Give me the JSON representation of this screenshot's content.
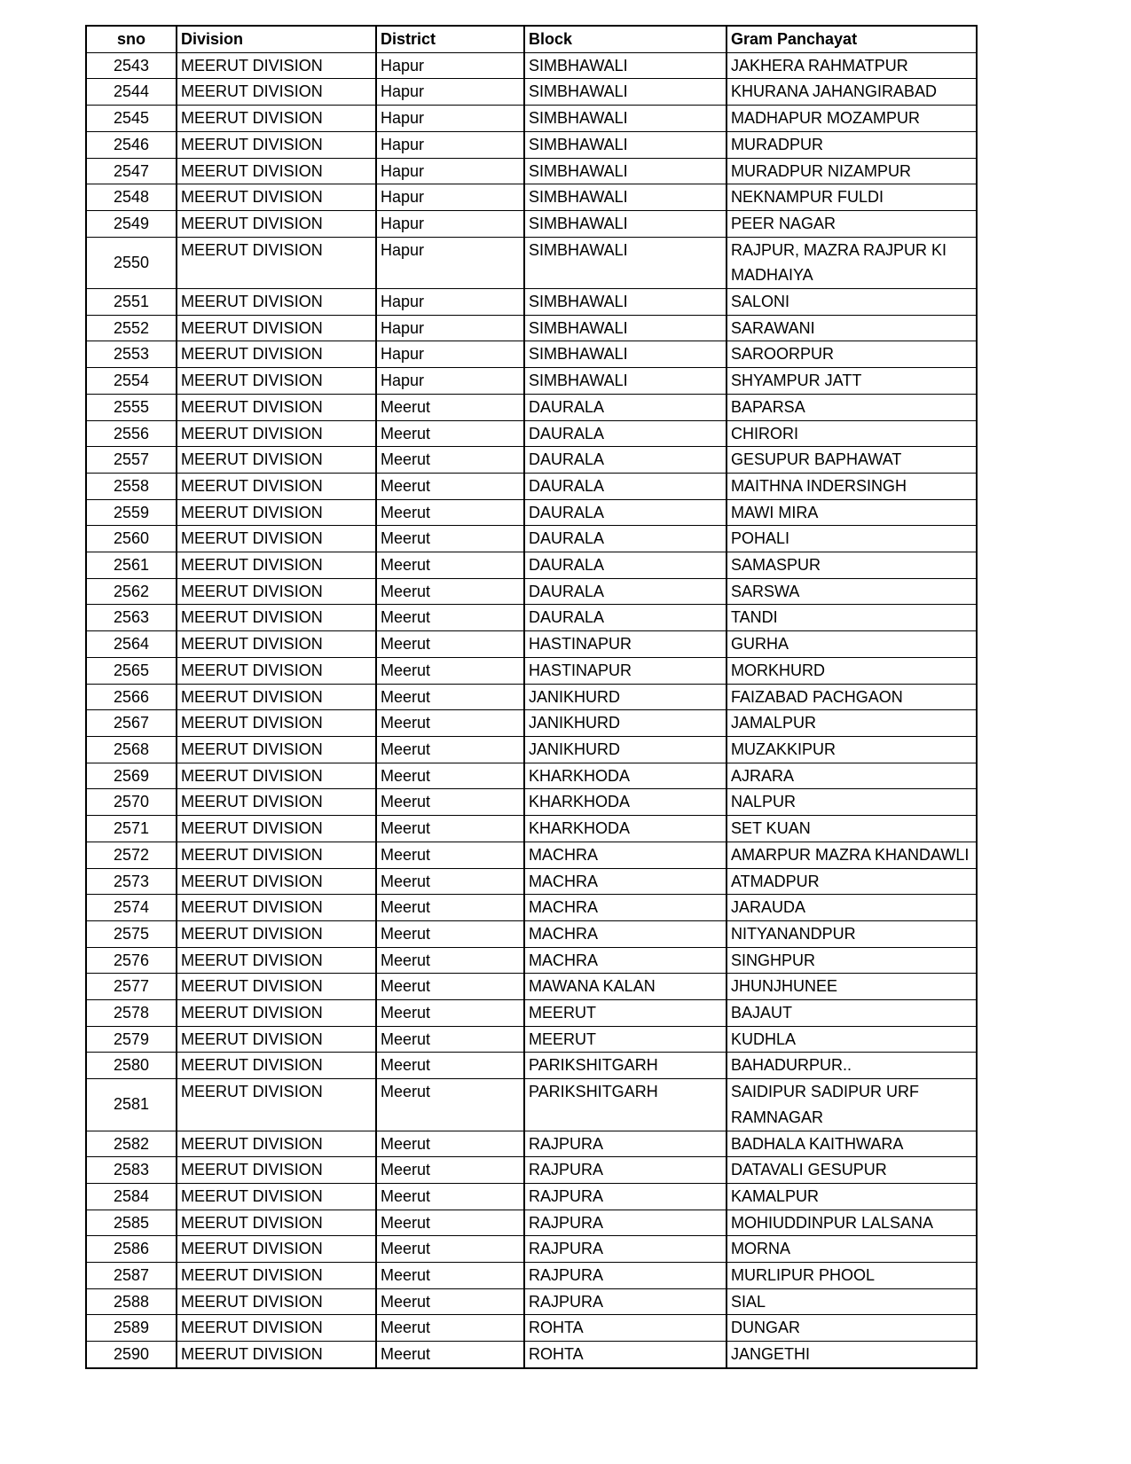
{
  "headers": [
    "sno",
    "Division",
    "District",
    "Block",
    "Gram Panchayat"
  ],
  "rows": [
    [
      "2543",
      "MEERUT DIVISION",
      "Hapur",
      "SIMBHAWALI",
      "JAKHERA RAHMATPUR"
    ],
    [
      "2544",
      "MEERUT DIVISION",
      "Hapur",
      "SIMBHAWALI",
      "KHURANA JAHANGIRABAD"
    ],
    [
      "2545",
      "MEERUT DIVISION",
      "Hapur",
      "SIMBHAWALI",
      "MADHAPUR MOZAMPUR"
    ],
    [
      "2546",
      "MEERUT DIVISION",
      "Hapur",
      "SIMBHAWALI",
      "MURADPUR"
    ],
    [
      "2547",
      "MEERUT DIVISION",
      "Hapur",
      "SIMBHAWALI",
      "MURADPUR NIZAMPUR"
    ],
    [
      "2548",
      "MEERUT DIVISION",
      "Hapur",
      "SIMBHAWALI",
      "NEKNAMPUR FULDI"
    ],
    [
      "2549",
      "MEERUT DIVISION",
      "Hapur",
      "SIMBHAWALI",
      "PEER NAGAR"
    ],
    [
      "2550",
      "MEERUT DIVISION",
      "Hapur",
      "SIMBHAWALI",
      "RAJPUR, MAZRA RAJPUR KI MADHAIYA"
    ],
    [
      "2551",
      "MEERUT DIVISION",
      "Hapur",
      "SIMBHAWALI",
      "SALONI"
    ],
    [
      "2552",
      "MEERUT DIVISION",
      "Hapur",
      "SIMBHAWALI",
      "SARAWANI"
    ],
    [
      "2553",
      "MEERUT DIVISION",
      "Hapur",
      "SIMBHAWALI",
      "SAROORPUR"
    ],
    [
      "2554",
      "MEERUT DIVISION",
      "Hapur",
      "SIMBHAWALI",
      "SHYAMPUR JATT"
    ],
    [
      "2555",
      "MEERUT DIVISION",
      "Meerut",
      "DAURALA",
      "BAPARSA"
    ],
    [
      "2556",
      "MEERUT DIVISION",
      "Meerut",
      "DAURALA",
      "CHIRORI"
    ],
    [
      "2557",
      "MEERUT DIVISION",
      "Meerut",
      "DAURALA",
      "GESUPUR BAPHAWAT"
    ],
    [
      "2558",
      "MEERUT DIVISION",
      "Meerut",
      "DAURALA",
      "MAITHNA INDERSINGH"
    ],
    [
      "2559",
      "MEERUT DIVISION",
      "Meerut",
      "DAURALA",
      "MAWI MIRA"
    ],
    [
      "2560",
      "MEERUT DIVISION",
      "Meerut",
      "DAURALA",
      "POHALI"
    ],
    [
      "2561",
      "MEERUT DIVISION",
      "Meerut",
      "DAURALA",
      "SAMASPUR"
    ],
    [
      "2562",
      "MEERUT DIVISION",
      "Meerut",
      "DAURALA",
      "SARSWA"
    ],
    [
      "2563",
      "MEERUT DIVISION",
      "Meerut",
      "DAURALA",
      "TANDI"
    ],
    [
      "2564",
      "MEERUT DIVISION",
      "Meerut",
      "HASTINAPUR",
      "GURHA"
    ],
    [
      "2565",
      "MEERUT DIVISION",
      "Meerut",
      "HASTINAPUR",
      "MORKHURD"
    ],
    [
      "2566",
      "MEERUT DIVISION",
      "Meerut",
      "JANIKHURD",
      "FAIZABAD PACHGAON"
    ],
    [
      "2567",
      "MEERUT DIVISION",
      "Meerut",
      "JANIKHURD",
      "JAMALPUR"
    ],
    [
      "2568",
      "MEERUT DIVISION",
      "Meerut",
      "JANIKHURD",
      "MUZAKKIPUR"
    ],
    [
      "2569",
      "MEERUT DIVISION",
      "Meerut",
      "KHARKHODA",
      "AJRARA"
    ],
    [
      "2570",
      "MEERUT DIVISION",
      "Meerut",
      "KHARKHODA",
      "NALPUR"
    ],
    [
      "2571",
      "MEERUT DIVISION",
      "Meerut",
      "KHARKHODA",
      "SET KUAN"
    ],
    [
      "2572",
      "MEERUT DIVISION",
      "Meerut",
      "MACHRA",
      "AMARPUR MAZRA KHANDAWLI"
    ],
    [
      "2573",
      "MEERUT DIVISION",
      "Meerut",
      "MACHRA",
      "ATMADPUR"
    ],
    [
      "2574",
      "MEERUT DIVISION",
      "Meerut",
      "MACHRA",
      "JARAUDA"
    ],
    [
      "2575",
      "MEERUT DIVISION",
      "Meerut",
      "MACHRA",
      "NITYANANDPUR"
    ],
    [
      "2576",
      "MEERUT DIVISION",
      "Meerut",
      "MACHRA",
      "SINGHPUR"
    ],
    [
      "2577",
      "MEERUT DIVISION",
      "Meerut",
      "MAWANA KALAN",
      "JHUNJHUNEE"
    ],
    [
      "2578",
      "MEERUT DIVISION",
      "Meerut",
      "MEERUT",
      "BAJAUT"
    ],
    [
      "2579",
      "MEERUT DIVISION",
      "Meerut",
      "MEERUT",
      "KUDHLA"
    ],
    [
      "2580",
      "MEERUT DIVISION",
      "Meerut",
      "PARIKSHITGARH",
      "BAHADURPUR.."
    ],
    [
      "2581",
      "MEERUT DIVISION",
      "Meerut",
      "PARIKSHITGARH",
      "SAIDIPUR SADIPUR URF RAMNAGAR"
    ],
    [
      "2582",
      "MEERUT DIVISION",
      "Meerut",
      "RAJPURA",
      "BADHALA KAITHWARA"
    ],
    [
      "2583",
      "MEERUT DIVISION",
      "Meerut",
      "RAJPURA",
      "DATAVALI GESUPUR"
    ],
    [
      "2584",
      "MEERUT DIVISION",
      "Meerut",
      "RAJPURA",
      "KAMALPUR"
    ],
    [
      "2585",
      "MEERUT DIVISION",
      "Meerut",
      "RAJPURA",
      "MOHIUDDINPUR LALSANA"
    ],
    [
      "2586",
      "MEERUT DIVISION",
      "Meerut",
      "RAJPURA",
      "MORNA"
    ],
    [
      "2587",
      "MEERUT DIVISION",
      "Meerut",
      "RAJPURA",
      "MURLIPUR PHOOL"
    ],
    [
      "2588",
      "MEERUT DIVISION",
      "Meerut",
      "RAJPURA",
      "SIAL"
    ],
    [
      "2589",
      "MEERUT DIVISION",
      "Meerut",
      "ROHTA",
      "DUNGAR"
    ],
    [
      "2590",
      "MEERUT DIVISION",
      "Meerut",
      "ROHTA",
      "JANGETHI"
    ]
  ]
}
